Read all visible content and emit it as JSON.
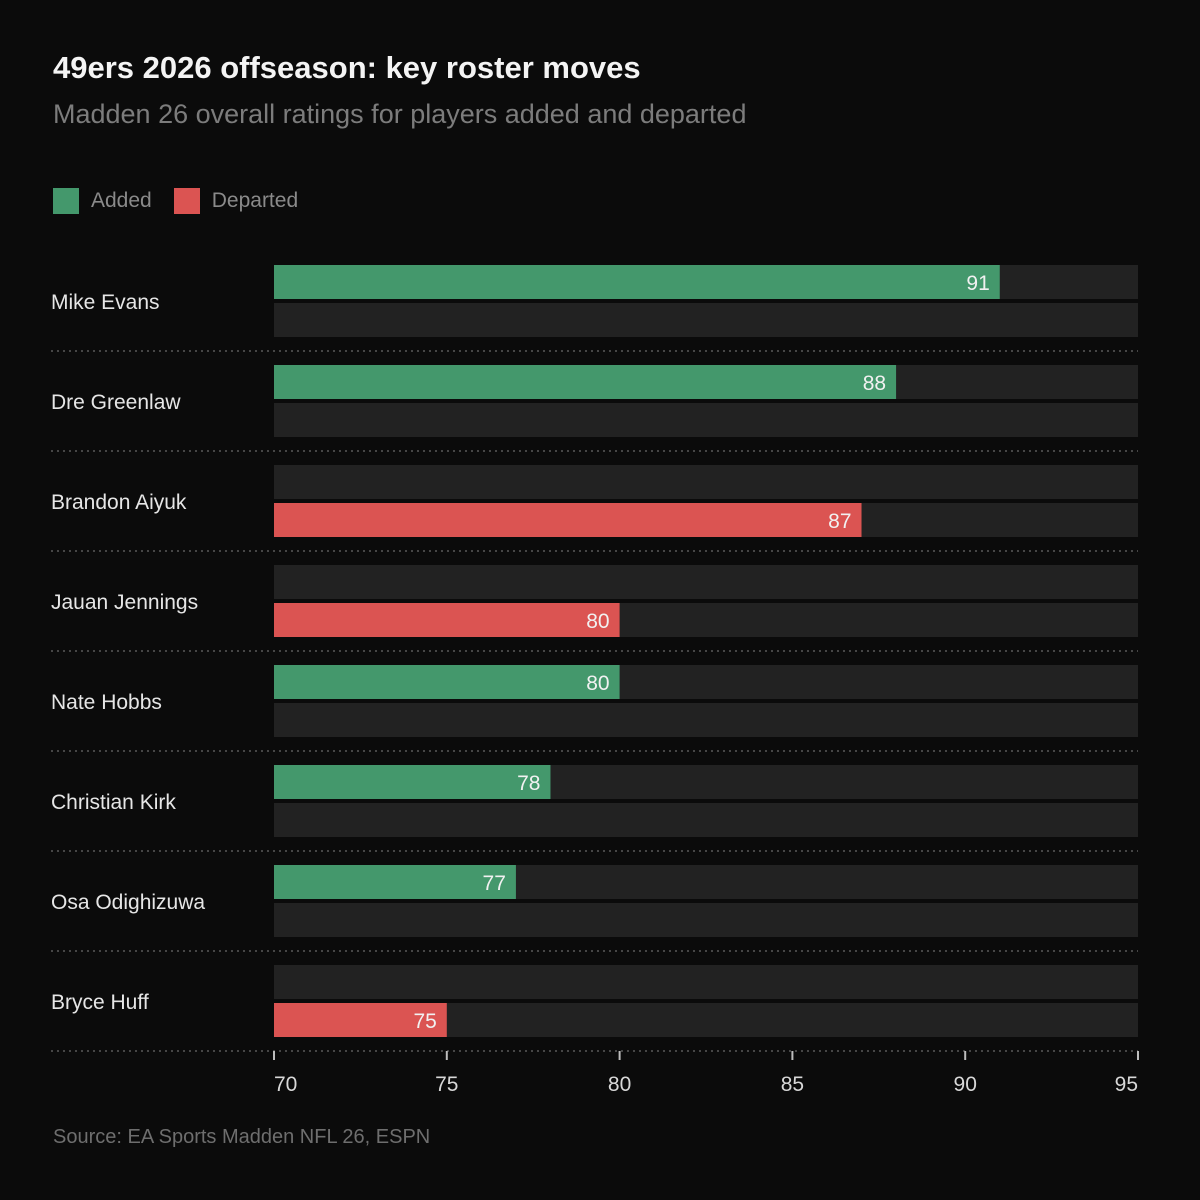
{
  "header": {
    "title": "49ers 2026 offseason: key roster moves",
    "subtitle": "Madden 26 overall ratings for players added and departed"
  },
  "legend": [
    {
      "label": "Added",
      "color": "#44986c"
    },
    {
      "label": "Departed",
      "color": "#db5452"
    }
  ],
  "colors": {
    "added": "#44986c",
    "departed": "#db5452",
    "track": "#222222",
    "separator": "#5a5a5a",
    "axis": "#bdbdbd",
    "label": "#e6e6e6",
    "value_label": "#f1f1f1"
  },
  "chart_data": {
    "type": "bar",
    "orientation": "horizontal",
    "title": "49ers 2026 offseason: key roster moves",
    "subtitle": "Madden 26 overall ratings for players added and departed",
    "xlabel": "",
    "ylabel": "",
    "xlim": [
      70,
      95
    ],
    "ticks": [
      70,
      75,
      80,
      85,
      90,
      95
    ],
    "categories": [
      "Mike Evans",
      "Dre Greenlaw",
      "Brandon Aiyuk",
      "Jauan Jennings",
      "Nate Hobbs",
      "Christian Kirk",
      "Osa Odighizuwa",
      "Bryce Huff"
    ],
    "series": [
      {
        "name": "Added",
        "values": [
          91,
          88,
          null,
          null,
          80,
          78,
          77,
          null
        ]
      },
      {
        "name": "Departed",
        "values": [
          null,
          null,
          87,
          80,
          null,
          null,
          null,
          75
        ]
      }
    ],
    "legend_position": "top-left"
  },
  "footer": {
    "source": "Source: EA Sports Madden NFL 26, ESPN"
  }
}
